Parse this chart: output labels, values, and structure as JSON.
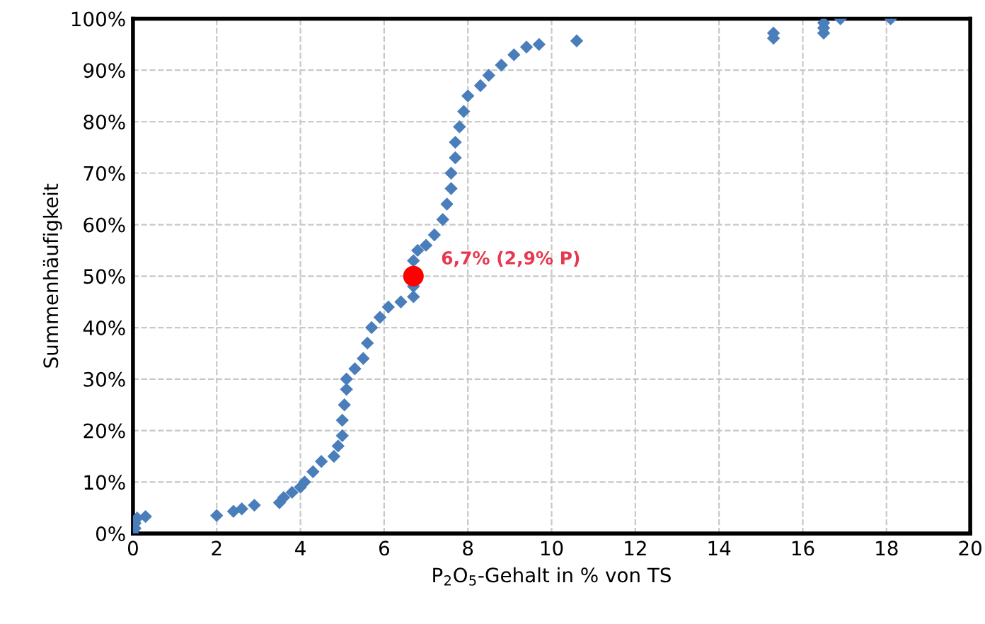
{
  "chart_data": {
    "type": "scatter",
    "xlabel": "P$_{2}$O$_{5}$-Gehalt in % von TS",
    "ylabel": "Summenhäufigkeit",
    "xlim": [
      0,
      20
    ],
    "xticks": [
      0,
      2,
      4,
      6,
      8,
      10,
      12,
      14,
      16,
      18,
      20
    ],
    "ylim": [
      0,
      100
    ],
    "yticks": [
      {
        "value": 0,
        "label": "0%"
      },
      {
        "value": 10,
        "label": "10%"
      },
      {
        "value": 20,
        "label": "20%"
      },
      {
        "value": 30,
        "label": "30%"
      },
      {
        "value": 40,
        "label": "40%"
      },
      {
        "value": 50,
        "label": "50%"
      },
      {
        "value": 60,
        "label": "60%"
      },
      {
        "value": 70,
        "label": "70%"
      },
      {
        "value": 80,
        "label": "80%"
      },
      {
        "value": 90,
        "label": "90%"
      },
      {
        "value": 100,
        "label": "100%"
      }
    ],
    "grid": true,
    "legend": false,
    "series": [
      {
        "color": "#4a7ebb",
        "marker": "diamond",
        "x": [
          0,
          0.05,
          0.05,
          0.1,
          0.3,
          2.0,
          2.4,
          2.6,
          2.9,
          3.5,
          3.6,
          3.8,
          4.0,
          4.1,
          4.3,
          4.5,
          4.8,
          4.9,
          5.0,
          5.0,
          5.05,
          5.1,
          5.1,
          5.3,
          5.5,
          5.6,
          5.7,
          5.9,
          6.1,
          6.4,
          6.7,
          6.7,
          6.7,
          6.8,
          7.0,
          7.2,
          7.4,
          7.5,
          7.6,
          7.6,
          7.7,
          7.7,
          7.8,
          7.9,
          8.0,
          8.3,
          8.5,
          8.8,
          9.1,
          9.4,
          9.7,
          10.6,
          15.3,
          15.3,
          16.5,
          16.5,
          16.5,
          16.9,
          18.1
        ],
        "values": [
          0,
          1,
          2,
          3,
          3.3,
          3.5,
          4.3,
          4.8,
          5.5,
          6,
          7,
          8,
          9,
          10,
          12,
          14,
          15,
          17,
          19,
          22,
          25,
          28,
          30,
          32,
          34,
          37,
          40,
          42,
          44,
          45,
          46,
          48,
          53,
          55,
          56,
          58,
          61,
          64,
          67,
          70,
          73,
          76,
          79,
          82,
          85,
          87,
          89,
          91,
          93,
          94.5,
          95,
          95.7,
          96.2,
          97.2,
          97.2,
          98.2,
          99.2,
          100,
          100
        ]
      },
      {
        "color": "#ff0000",
        "marker": "circle",
        "x": [
          6.7
        ],
        "values": [
          50
        ]
      }
    ],
    "annotations": [
      {
        "text": "6,7% (2,9% P)",
        "x": 6.7,
        "y": 50
      }
    ]
  }
}
